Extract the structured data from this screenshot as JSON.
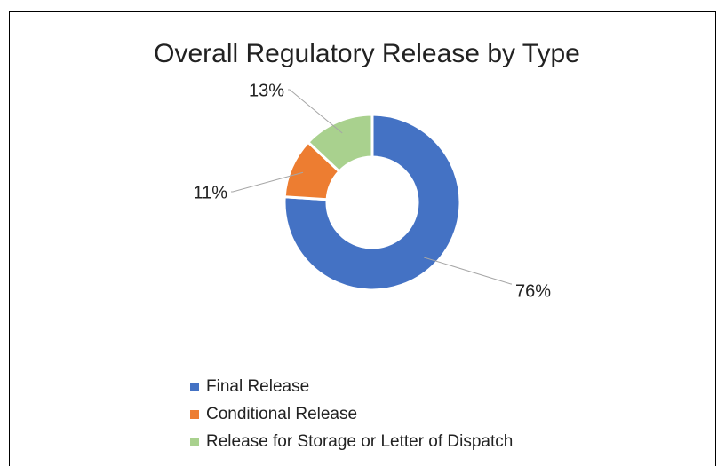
{
  "chart_data": {
    "type": "donut",
    "title": "Overall Regulatory Release by Type",
    "categories": [
      "Final Release",
      "Conditional Release",
      "Release for Storage or Letter of Dispatch"
    ],
    "values": [
      76,
      11,
      13
    ],
    "value_labels": [
      "76%",
      "11%",
      "13%"
    ],
    "colors": [
      "#4472c4",
      "#ed7d31",
      "#a9d18e"
    ],
    "legend": "bottom-left"
  }
}
